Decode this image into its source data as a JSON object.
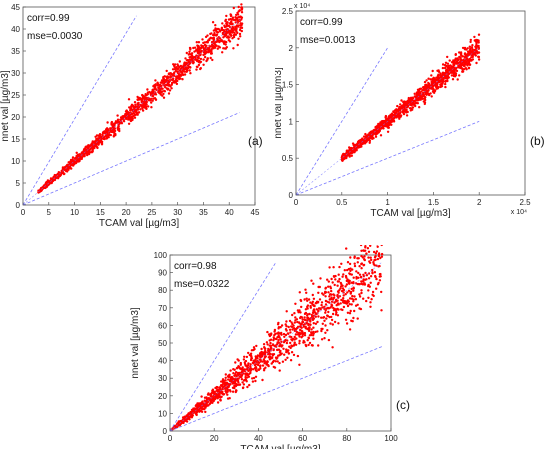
{
  "panels": [
    {
      "label": "(a)"
    },
    {
      "label": "(b)"
    },
    {
      "label": "(c)"
    }
  ],
  "chart_data": [
    {
      "type": "scatter",
      "panel": "(a)",
      "xlabel": "TCAM val [µg/m3]",
      "ylabel": "nnet val [µg/m3]",
      "xlim": [
        0,
        45
      ],
      "ylim": [
        0,
        45
      ],
      "xticks": [
        "0",
        "5",
        "10",
        "15",
        "20",
        "25",
        "30",
        "35",
        "40",
        "45"
      ],
      "yticks": [
        "0",
        "5",
        "10",
        "15",
        "20",
        "25",
        "30",
        "35",
        "40",
        "45"
      ],
      "grid": false,
      "annotations": [
        "corr=0.99",
        "mse=0.0030"
      ],
      "point_color": "#ff0000",
      "guide_color": "#7777ff",
      "scatter": {
        "x_min": 3,
        "x_max": 42.5,
        "n": 1500,
        "spread": 0.045
      },
      "guide_lines": [
        [
          [
            0,
            0
          ],
          [
            22,
            43
          ]
        ],
        [
          [
            0,
            0
          ],
          [
            42,
            21
          ]
        ]
      ],
      "identity_line": [
        [
          0,
          0
        ],
        [
          42.5,
          42.5
        ]
      ]
    },
    {
      "type": "scatter",
      "panel": "(b)",
      "xlabel": "TCAM val [µg/m3]",
      "ylabel": "nnet val [µg/m3]",
      "xlim": [
        0,
        2.5
      ],
      "ylim": [
        0,
        2.5
      ],
      "xticks": [
        "0",
        "0.5",
        "1",
        "1.5",
        "2",
        "2.5"
      ],
      "yticks": [
        "0",
        "0.5",
        "1",
        "1.5",
        "2",
        "2.5"
      ],
      "x_exponent": "x 10⁴",
      "y_exponent": "x 10⁴",
      "grid": false,
      "annotations": [
        "corr=0.99",
        "mse=0.0013"
      ],
      "point_color": "#ff0000",
      "guide_color": "#7777ff",
      "scatter": {
        "x_min": 0.5,
        "x_max": 2.0,
        "n": 1300,
        "spread": 0.04
      },
      "guide_lines": [
        [
          [
            0,
            0
          ],
          [
            1,
            2
          ]
        ],
        [
          [
            0,
            0
          ],
          [
            2,
            1
          ]
        ]
      ],
      "identity_line": [
        [
          0,
          0
        ],
        [
          2,
          2
        ]
      ]
    },
    {
      "type": "scatter",
      "panel": "(c)",
      "xlabel": "TCAM val [µg/m3]",
      "ylabel": "nnet val [µg/m3]",
      "xlim": [
        0,
        100
      ],
      "ylim": [
        0,
        100
      ],
      "xticks": [
        "0",
        "20",
        "40",
        "60",
        "80",
        "100"
      ],
      "yticks": [
        "0",
        "10",
        "20",
        "30",
        "40",
        "50",
        "60",
        "70",
        "80",
        "90",
        "100"
      ],
      "grid": false,
      "annotations": [
        "corr=0.98",
        "mse=0.0322"
      ],
      "point_color": "#ff0000",
      "guide_color": "#7777ff",
      "scatter": {
        "x_min": 0.5,
        "x_max": 96,
        "n": 1400,
        "spread": 0.12
      },
      "guide_lines": [
        [
          [
            0,
            0
          ],
          [
            48,
            96
          ]
        ],
        [
          [
            0,
            0
          ],
          [
            96,
            48
          ]
        ]
      ],
      "identity_line": [
        [
          0,
          0
        ],
        [
          96,
          96
        ]
      ]
    }
  ]
}
